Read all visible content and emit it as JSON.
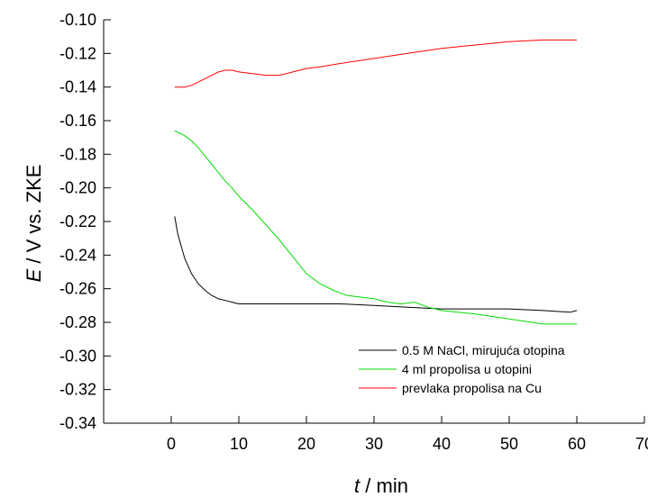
{
  "chart_data": {
    "type": "line",
    "title": "",
    "xlabel_symbol": "t",
    "xlabel_rest": " / min",
    "ylabel_symbol": "E",
    "ylabel_rest": " / V vs. ZKE",
    "xlim": [
      -10,
      70
    ],
    "ylim": [
      -0.34,
      -0.1
    ],
    "xticks": [
      0,
      10,
      20,
      30,
      40,
      50,
      60,
      70
    ],
    "xtick_labels": [
      "0",
      "10",
      "20",
      "30",
      "40",
      "50",
      "60",
      "70"
    ],
    "yticks": [
      -0.1,
      -0.12,
      -0.14,
      -0.16,
      -0.18,
      -0.2,
      -0.22,
      -0.24,
      -0.26,
      -0.28,
      -0.3,
      -0.32,
      -0.34
    ],
    "ytick_labels": [
      "-0.10",
      "-0.12",
      "-0.14",
      "-0.16",
      "-0.18",
      "-0.20",
      "-0.22",
      "-0.24",
      "-0.26",
      "-0.28",
      "-0.30",
      "-0.32",
      "-0.34"
    ],
    "grid": false,
    "legend_position": "bottom-right",
    "series": [
      {
        "name": "0.5 M NaCl, mirujuća otopina",
        "color": "#000000",
        "x": [
          0.5,
          1,
          2,
          3,
          4,
          5,
          6,
          7,
          8,
          9,
          10,
          12,
          15,
          20,
          25,
          30,
          35,
          40,
          45,
          50,
          55,
          59,
          60
        ],
        "y": [
          -0.217,
          -0.228,
          -0.242,
          -0.251,
          -0.257,
          -0.261,
          -0.264,
          -0.266,
          -0.267,
          -0.268,
          -0.269,
          -0.269,
          -0.269,
          -0.269,
          -0.269,
          -0.27,
          -0.271,
          -0.272,
          -0.272,
          -0.272,
          -0.273,
          -0.274,
          -0.273
        ]
      },
      {
        "name": "4 ml propolisa u otopini",
        "color": "#00dd00",
        "x": [
          0.5,
          1,
          2,
          3,
          4,
          5,
          6,
          7,
          8,
          9,
          10,
          12,
          14,
          16,
          18,
          20,
          22,
          24,
          26,
          28,
          30,
          32,
          34,
          36,
          38,
          40,
          45,
          50,
          55,
          60
        ],
        "y": [
          -0.166,
          -0.167,
          -0.169,
          -0.172,
          -0.176,
          -0.181,
          -0.186,
          -0.191,
          -0.196,
          -0.2,
          -0.205,
          -0.213,
          -0.222,
          -0.231,
          -0.241,
          -0.251,
          -0.257,
          -0.261,
          -0.264,
          -0.265,
          -0.266,
          -0.268,
          -0.269,
          -0.268,
          -0.271,
          -0.273,
          -0.275,
          -0.278,
          -0.281,
          -0.281
        ]
      },
      {
        "name": "prevlaka propolisa na Cu",
        "color": "#ff0000",
        "x": [
          0.5,
          2,
          3,
          4,
          5,
          6,
          7,
          8,
          9,
          10,
          12,
          14,
          16,
          18,
          20,
          22,
          25,
          30,
          35,
          40,
          45,
          50,
          55,
          60
        ],
        "y": [
          -0.14,
          -0.14,
          -0.139,
          -0.137,
          -0.135,
          -0.133,
          -0.131,
          -0.13,
          -0.13,
          -0.131,
          -0.132,
          -0.133,
          -0.133,
          -0.131,
          -0.129,
          -0.128,
          -0.126,
          -0.123,
          -0.12,
          -0.117,
          -0.115,
          -0.113,
          -0.112,
          -0.112
        ]
      }
    ]
  }
}
